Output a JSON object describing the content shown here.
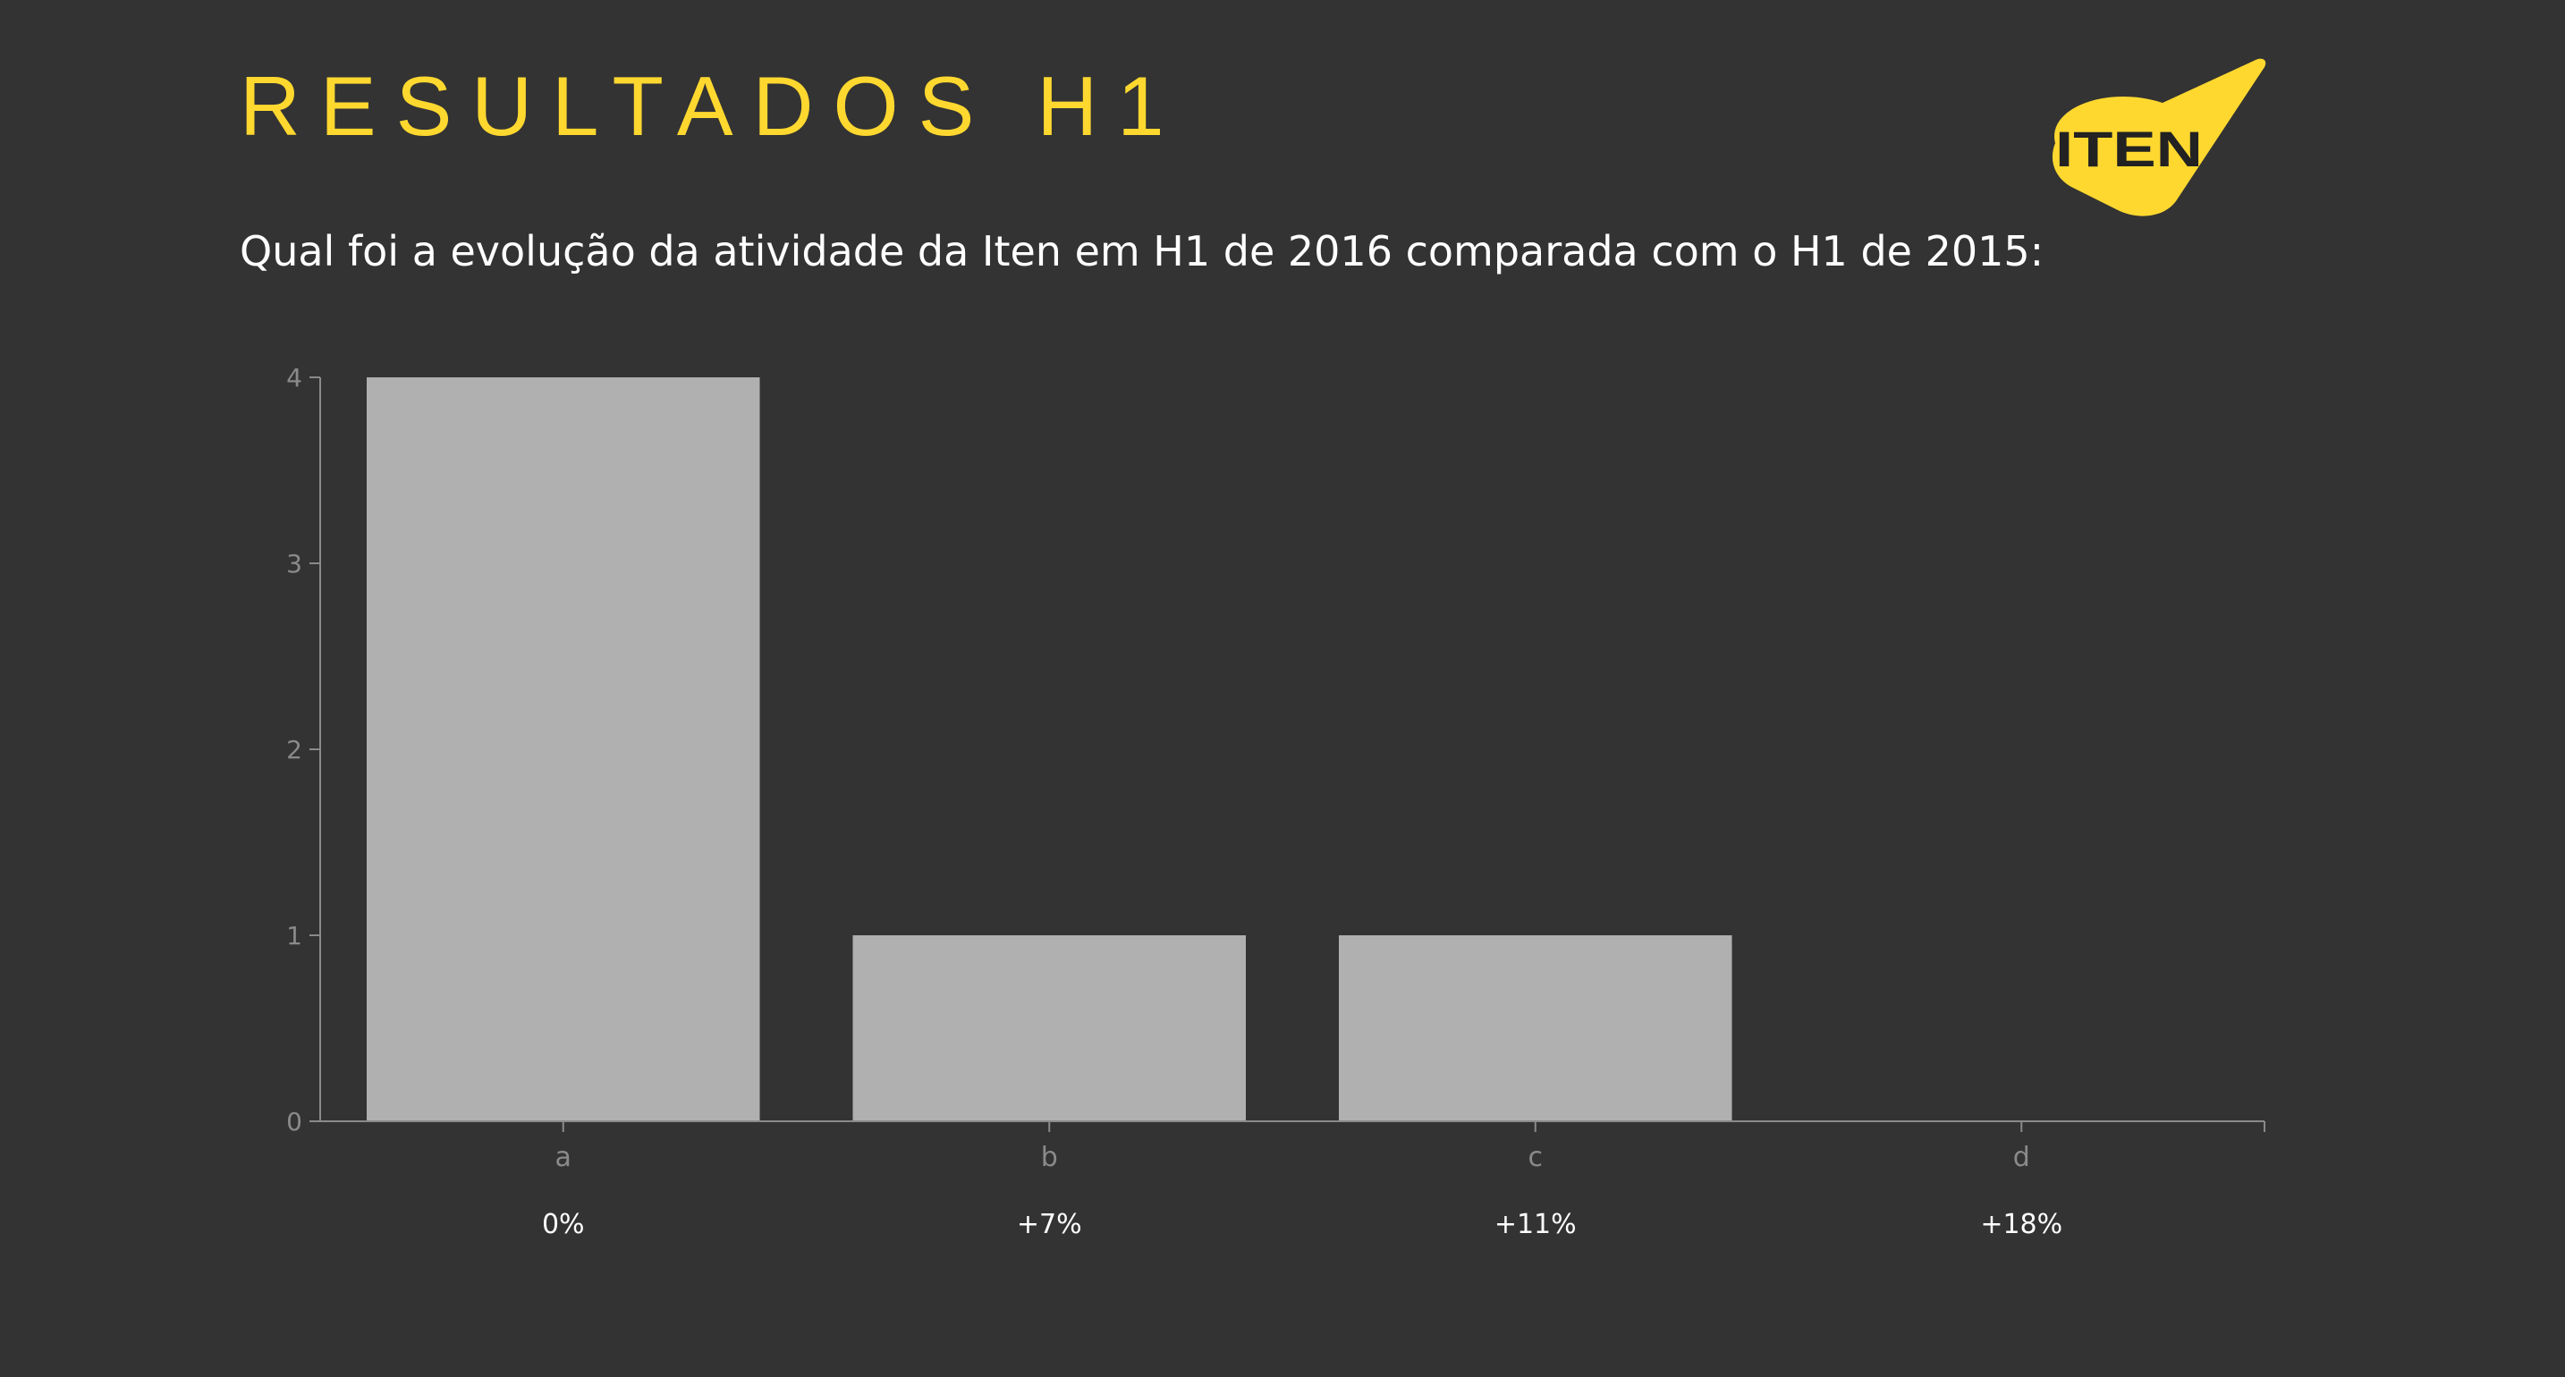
{
  "header": {
    "title": "RESULTADOS H1",
    "subtitle": "Qual foi a evolução da atividade da Iten em H1 de 2016 comparada com o H1 de 2015:"
  },
  "logo": {
    "text": "ITEN",
    "color": "#FFD82F"
  },
  "colors": {
    "background": "#333333",
    "accent": "#FFD82F",
    "bar": "#B0B0B0",
    "axis": "#8a8a8a"
  },
  "chart_data": {
    "type": "bar",
    "categories": [
      "a",
      "b",
      "c",
      "d"
    ],
    "values": [
      4,
      1,
      1,
      0
    ],
    "ylim": [
      0,
      4
    ],
    "yticks": [
      0,
      1,
      2,
      3,
      4
    ],
    "grid": false,
    "legend": "none"
  },
  "options": [
    {
      "key": "a",
      "label": "0%"
    },
    {
      "key": "b",
      "label": "+7%"
    },
    {
      "key": "c",
      "label": "+11%"
    },
    {
      "key": "d",
      "label": "+18%"
    }
  ]
}
